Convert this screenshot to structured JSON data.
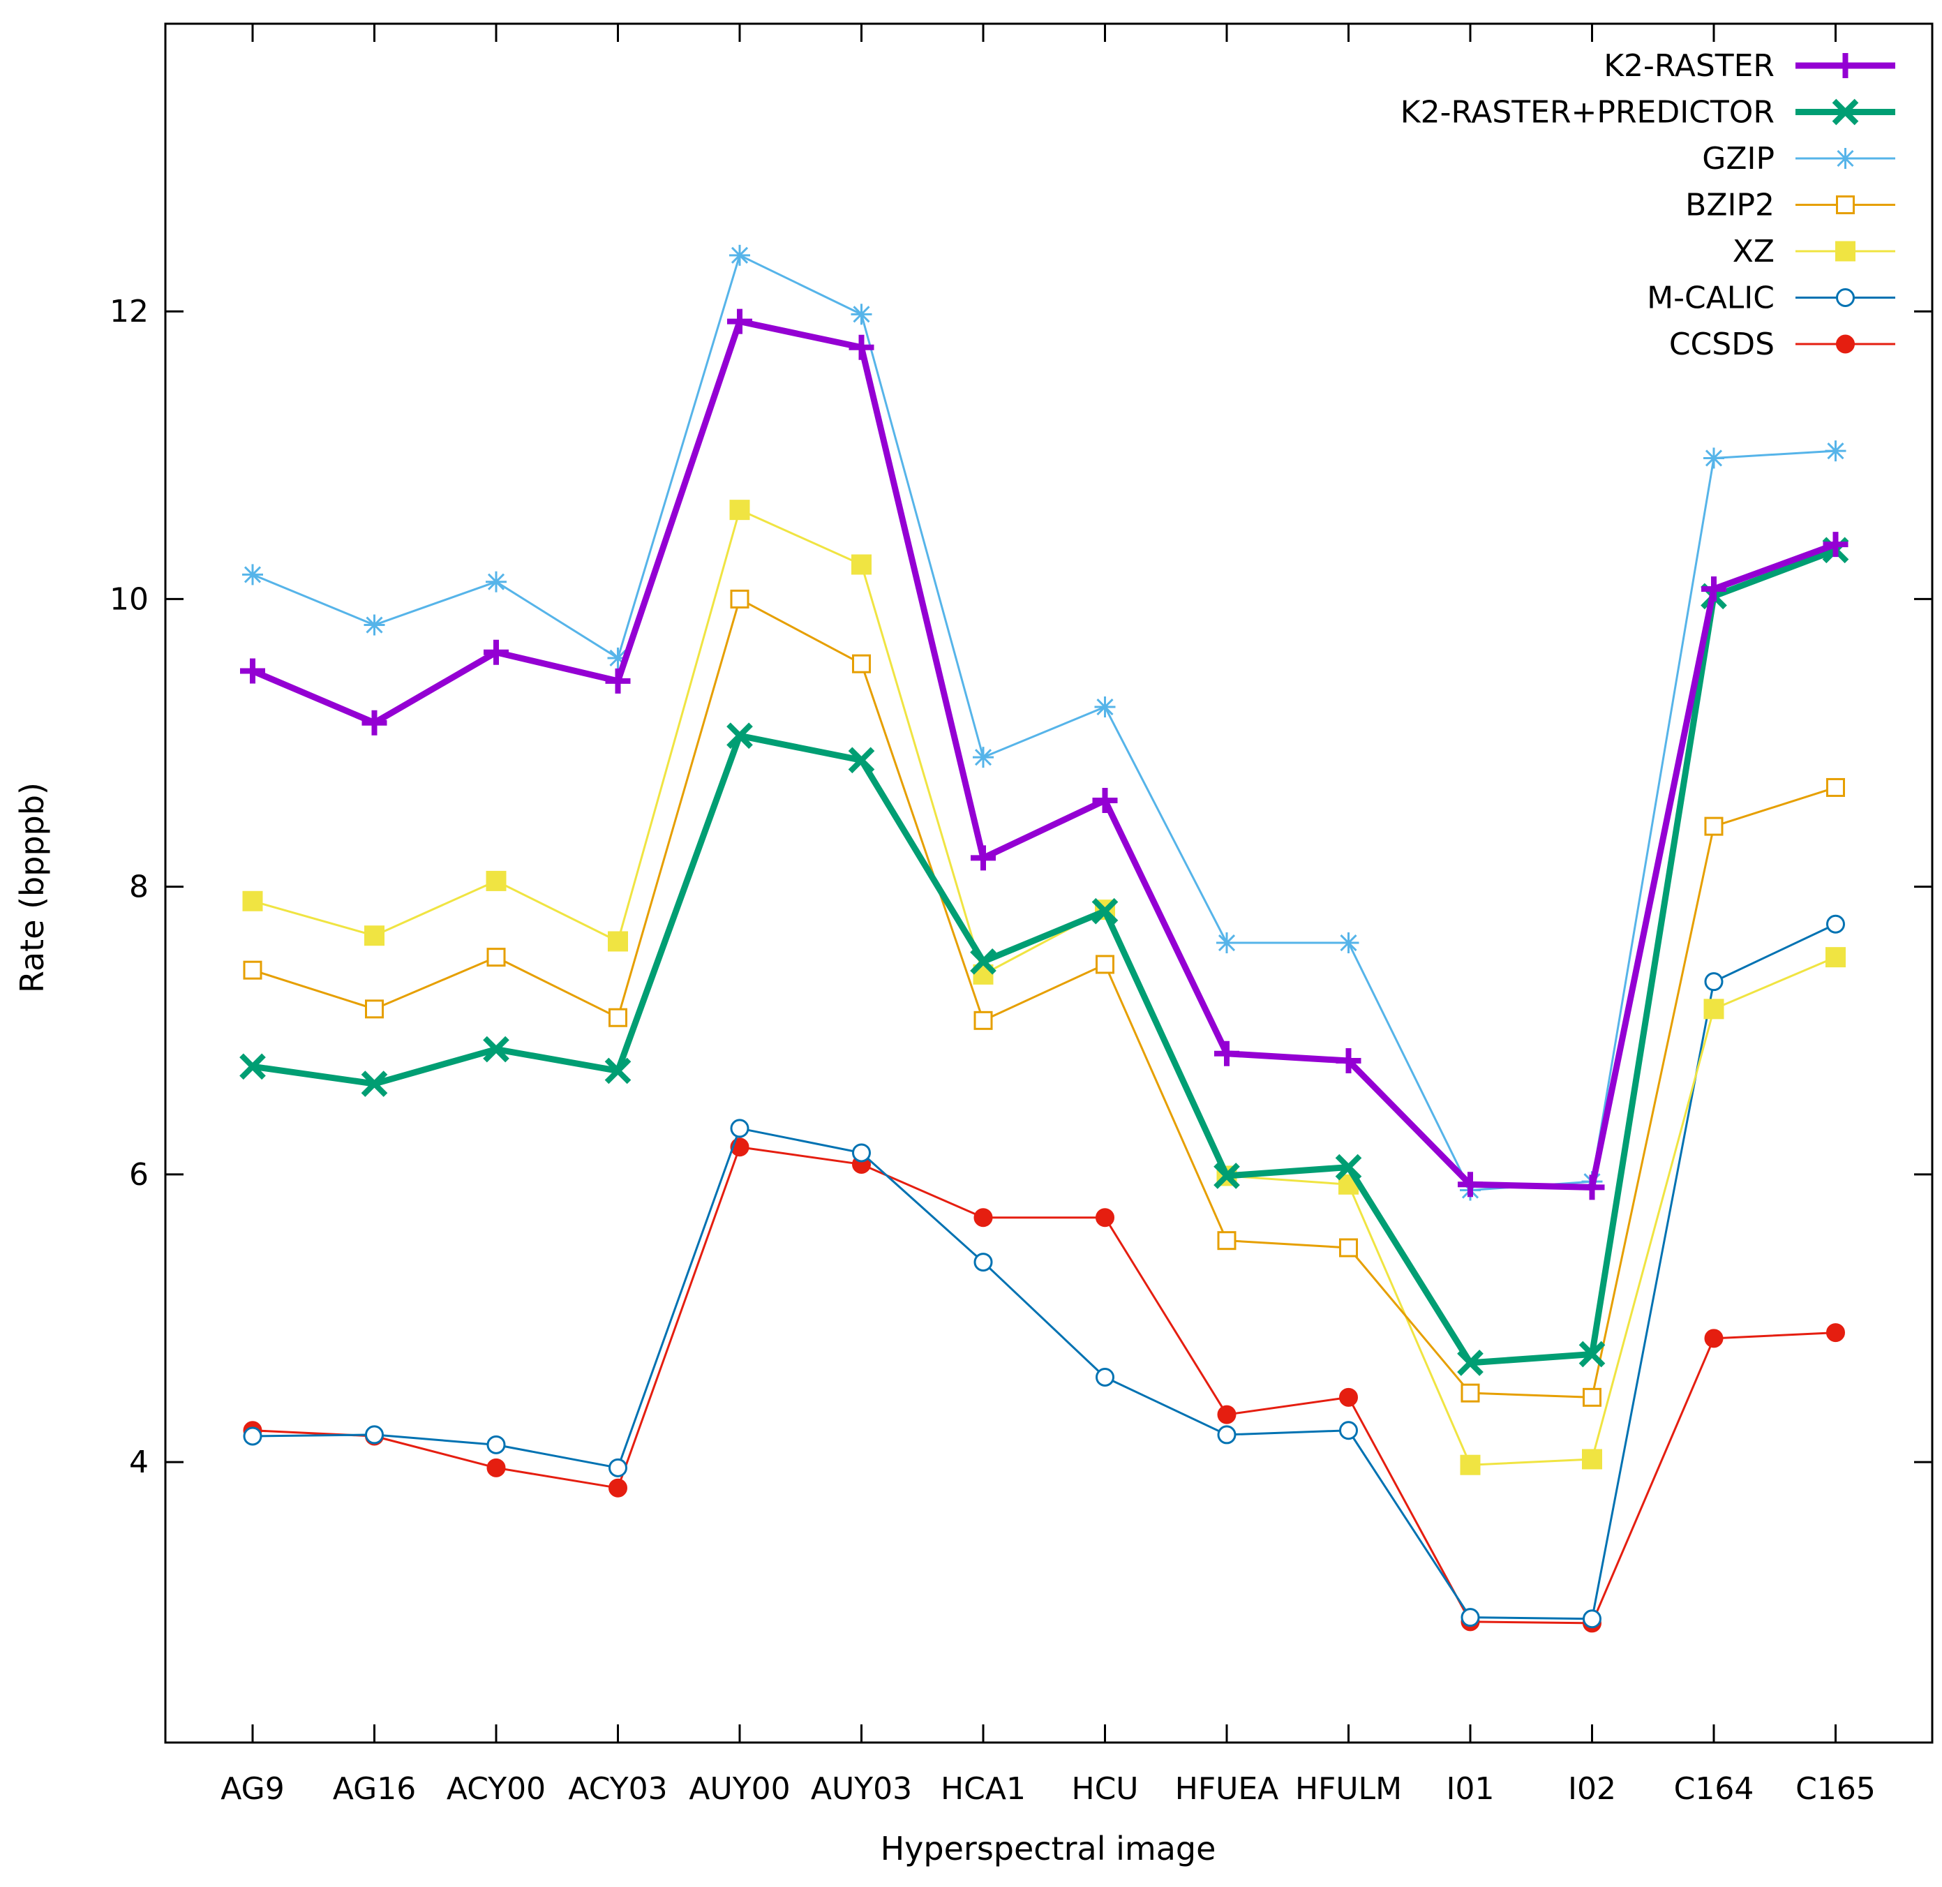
{
  "chart_data": {
    "type": "line",
    "xlabel": "Hyperspectral image",
    "ylabel": "Rate (bpppb)",
    "categories": [
      "AG9",
      "AG16",
      "ACY00",
      "ACY03",
      "AUY00",
      "AUY03",
      "HCA1",
      "HCU",
      "HFUEA",
      "HFULM",
      "I01",
      "I02",
      "C164",
      "C165"
    ],
    "ylim": [
      2.05,
      14.0
    ],
    "yticks": [
      4,
      6,
      8,
      10,
      12
    ],
    "grid": false,
    "legend_position": "top-right",
    "series": [
      {
        "name": "K2-RASTER",
        "color": "#9400d3",
        "marker": "plus",
        "line_weight": "thick",
        "values": [
          9.5,
          9.14,
          9.63,
          9.43,
          11.93,
          11.75,
          8.2,
          8.6,
          6.84,
          6.79,
          5.93,
          5.91,
          10.07,
          10.38
        ]
      },
      {
        "name": "K2-RASTER+PREDICTOR",
        "color": "#009e73",
        "marker": "cross",
        "line_weight": "thick",
        "values": [
          6.75,
          6.63,
          6.87,
          6.72,
          9.05,
          8.88,
          7.48,
          7.83,
          5.99,
          6.05,
          4.69,
          4.75,
          10.02,
          10.34
        ]
      },
      {
        "name": "GZIP",
        "color": "#56b4e9",
        "marker": "asterisk",
        "line_weight": "thin",
        "values": [
          10.17,
          9.82,
          10.12,
          9.59,
          12.39,
          11.98,
          8.9,
          9.25,
          7.61,
          7.61,
          5.89,
          5.95,
          10.98,
          11.03
        ]
      },
      {
        "name": "BZIP2",
        "color": "#e69f00",
        "marker": "open-square",
        "line_weight": "thin",
        "values": [
          7.42,
          7.15,
          7.51,
          7.09,
          10.0,
          9.55,
          7.07,
          7.46,
          5.54,
          5.49,
          4.48,
          4.45,
          8.42,
          8.69
        ]
      },
      {
        "name": "XZ",
        "color": "#f0e442",
        "marker": "filled-square",
        "line_weight": "thin",
        "values": [
          7.9,
          7.66,
          8.04,
          7.62,
          10.62,
          10.24,
          7.39,
          7.84,
          5.99,
          5.93,
          3.98,
          4.02,
          7.15,
          7.51
        ]
      },
      {
        "name": "M-CALIC",
        "color": "#0072b2",
        "marker": "open-circle",
        "line_weight": "thin",
        "values": [
          4.18,
          4.19,
          4.12,
          3.96,
          6.32,
          6.15,
          5.39,
          4.59,
          4.19,
          4.22,
          2.92,
          2.91,
          7.34,
          7.74
        ]
      },
      {
        "name": "CCSDS",
        "color": "#e51e10",
        "marker": "filled-circle",
        "line_weight": "thin",
        "values": [
          4.22,
          4.18,
          3.96,
          3.82,
          6.19,
          6.07,
          5.7,
          5.7,
          4.33,
          4.45,
          2.89,
          2.88,
          4.86,
          4.9
        ]
      }
    ]
  }
}
